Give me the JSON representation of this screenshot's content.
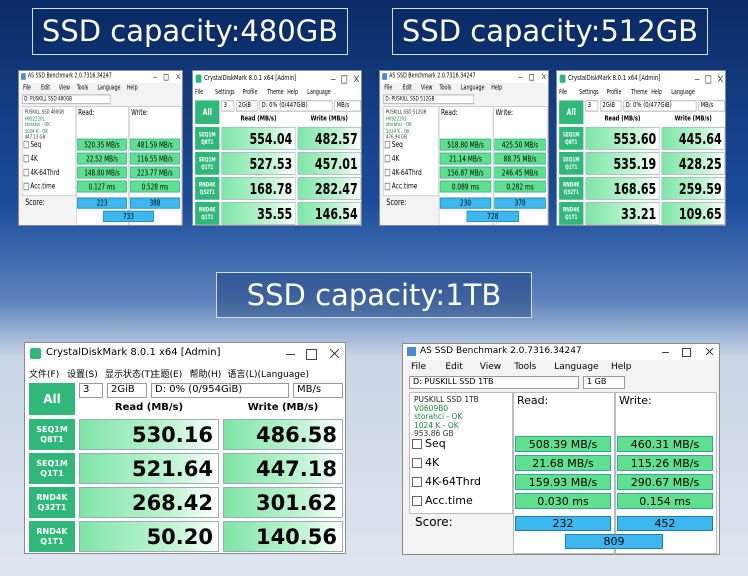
{
  "headings": [
    "SSD capacity:480GB",
    "SSD capacity:512GB",
    "SSD capacity:1TB"
  ],
  "as_ssd": [
    {
      "title": "AS SSD Benchmark 2.0.7316.34247",
      "menu": [
        "File",
        "Edit",
        "View",
        "Tools",
        "Language",
        "Help"
      ],
      "drive": "D: PUSKILL SSD 480GB",
      "info": [
        "PUSKILL SSD 480GB",
        "H0922201",
        "storahci - OK",
        "1024 K - OK",
        "447.13 GB"
      ],
      "headers": [
        "Read:",
        "Write:"
      ],
      "rows": [
        {
          "label": "Seq",
          "read": "520.35 MB/s",
          "write": "481.59 MB/s"
        },
        {
          "label": "4K",
          "read": "22.52 MB/s",
          "write": "116.55 MB/s"
        },
        {
          "label": "4K-64Thrd",
          "read": "148.80 MB/s",
          "write": "223.77 MB/s"
        },
        {
          "label": "Acc.time",
          "read": "0.127 ms",
          "write": "0.528 ms"
        }
      ],
      "score_label": "Score:",
      "score": [
        "223",
        "388",
        "733"
      ]
    },
    {
      "title": "AS SSD Benchmark 2.0.7316.34247",
      "menu": [
        "File",
        "Edit",
        "View",
        "Tools",
        "Language",
        "Help"
      ],
      "drive": "D: PUSKILL SSD 512GB",
      "info": [
        "PUSKILL SSD 512GB",
        "H0922201",
        "storahci - OK",
        "1024 K - OK",
        "476.94 GB"
      ],
      "headers": [
        "Read:",
        "Write:"
      ],
      "rows": [
        {
          "label": "Seq",
          "read": "518.80 MB/s",
          "write": "425.50 MB/s"
        },
        {
          "label": "4K",
          "read": "21.14 MB/s",
          "write": "88.75 MB/s"
        },
        {
          "label": "4K-64Thrd",
          "read": "156.87 MB/s",
          "write": "246.45 MB/s"
        },
        {
          "label": "Acc.time",
          "read": "0.089 ms",
          "write": "0.282 ms"
        }
      ],
      "score_label": "Score:",
      "score": [
        "230",
        "378",
        "728"
      ]
    },
    {
      "title": "AS SSD Benchmark 2.0.7316.34247",
      "menu": [
        "File",
        "Edit",
        "View",
        "Tools",
        "Language",
        "Help"
      ],
      "drive": "D: PUSKILL SSD 1TB",
      "size": "1 GB",
      "info": [
        "PUSKILL SSD 1TB",
        "V0609B0",
        "storahci - OK",
        "1024 K - OK",
        "953.86 GB"
      ],
      "headers": [
        "Read:",
        "Write:"
      ],
      "rows": [
        {
          "label": "Seq",
          "read": "508.39 MB/s",
          "write": "460.31 MB/s"
        },
        {
          "label": "4K",
          "read": "21.68 MB/s",
          "write": "115.26 MB/s"
        },
        {
          "label": "4K-64Thrd",
          "read": "159.93 MB/s",
          "write": "290.67 MB/s"
        },
        {
          "label": "Acc.time",
          "read": "0.030 ms",
          "write": "0.154 ms"
        }
      ],
      "score_label": "Score:",
      "score": [
        "232",
        "452",
        "809"
      ]
    }
  ],
  "crystaldiskmark": [
    {
      "title": "CrystalDiskMark 8.0.1 x64 [Admin]",
      "menu": [
        "File",
        "Settings",
        "Profile",
        "Theme",
        "Help",
        "Language"
      ],
      "all": "All",
      "count": "3",
      "size": "2GiB",
      "drive": "D: 0% (0/447GiB)",
      "unit": "MB/s",
      "headers": [
        "Read (MB/s)",
        "Write (MB/s)"
      ],
      "rows": [
        {
          "label": [
            "SEQ1M",
            "Q8T1"
          ],
          "read": "554.04",
          "write": "482.57"
        },
        {
          "label": [
            "SEQ1M",
            "Q1T1"
          ],
          "read": "527.53",
          "write": "457.01"
        },
        {
          "label": [
            "RND4K",
            "Q32T1"
          ],
          "read": "168.78",
          "write": "282.47"
        },
        {
          "label": [
            "RND4K",
            "Q1T1"
          ],
          "read": "35.55",
          "write": "146.54"
        }
      ]
    },
    {
      "title": "CrystalDiskMark 8.0.1 x64 [Admin]",
      "menu": [
        "File",
        "Settings",
        "Profile",
        "Theme",
        "Help",
        "Language"
      ],
      "all": "All",
      "count": "3",
      "size": "2GiB",
      "drive": "D: 0% (0/477GiB)",
      "unit": "MB/s",
      "headers": [
        "Read (MB/s)",
        "Write (MB/s)"
      ],
      "rows": [
        {
          "label": [
            "SEQ1M",
            "Q8T1"
          ],
          "read": "553.60",
          "write": "445.64"
        },
        {
          "label": [
            "SEQ1M",
            "Q1T1"
          ],
          "read": "535.19",
          "write": "428.25"
        },
        {
          "label": [
            "RND4K",
            "Q32T1"
          ],
          "read": "168.65",
          "write": "259.59"
        },
        {
          "label": [
            "RND4K",
            "Q1T1"
          ],
          "read": "33.21",
          "write": "109.65"
        }
      ]
    },
    {
      "title": "CrystalDiskMark 8.0.1 x64 [Admin]",
      "menu": [
        "文件(F)",
        "设置(S)",
        "显示状态(T)",
        "主题(E)",
        "帮助(H)",
        "语言(L)(Language)"
      ],
      "all": "All",
      "count": "3",
      "size": "2GiB",
      "drive": "D: 0% (0/954GiB)",
      "unit": "MB/s",
      "headers": [
        "Read (MB/s)",
        "Write (MB/s)"
      ],
      "rows": [
        {
          "label": [
            "SEQ1M",
            "Q8T1"
          ],
          "read": "530.16",
          "write": "486.58"
        },
        {
          "label": [
            "SEQ1M",
            "Q1T1"
          ],
          "read": "521.64",
          "write": "447.18"
        },
        {
          "label": [
            "RND4K",
            "Q32T1"
          ],
          "read": "268.42",
          "write": "301.62"
        },
        {
          "label": [
            "RND4K",
            "Q1T1"
          ],
          "read": "50.20",
          "write": "140.56"
        }
      ]
    }
  ]
}
